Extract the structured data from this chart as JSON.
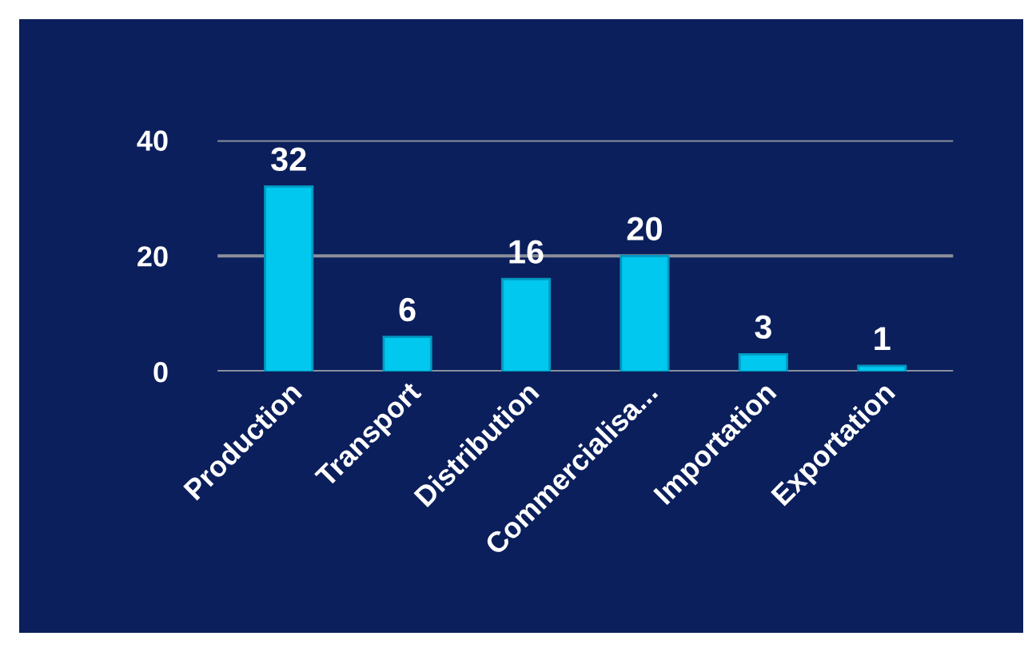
{
  "chart_data": {
    "type": "bar",
    "categories": [
      "Production",
      "Transport",
      "Distribution",
      "Commercialisa...",
      "Importation",
      "Exportation"
    ],
    "values": [
      32,
      6,
      16,
      20,
      3,
      1
    ],
    "color": "#00c8ee",
    "ylim": [
      0,
      40
    ],
    "yticks": [
      0,
      20,
      40
    ],
    "grid": "y",
    "data_labels": true
  }
}
